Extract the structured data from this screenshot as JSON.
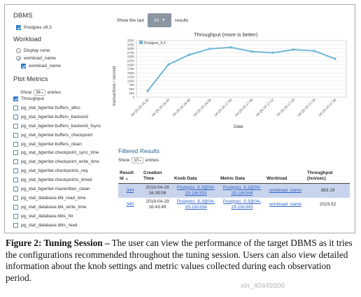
{
  "sidebar": {
    "dbms_heading": "DBMS",
    "dbms_option": "Postgres v9.3",
    "workload_heading": "Workload",
    "workload_options": [
      "Display none",
      "workload_name"
    ],
    "workload_sub": "workload_name",
    "plot_metrics_heading": "Plot Metrics",
    "show_label": "Show",
    "show_value": "36",
    "entries_label": "entries",
    "metrics": [
      {
        "label": "Throughput",
        "checked": true
      },
      {
        "label": "pg_stat_bgwriter.buffers_alloc",
        "checked": false
      },
      {
        "label": "pg_stat_bgwriter.buffers_backend",
        "checked": false
      },
      {
        "label": "pg_stat_bgwriter.buffers_backend_fsync",
        "checked": false
      },
      {
        "label": "pg_stat_bgwriter.buffers_checkpoint",
        "checked": false
      },
      {
        "label": "pg_stat_bgwriter.buffers_clean",
        "checked": false
      },
      {
        "label": "pg_stat_bgwriter.checkpoint_sync_time",
        "checked": false
      },
      {
        "label": "pg_stat_bgwriter.checkpoint_write_time",
        "checked": false
      },
      {
        "label": "pg_stat_bgwriter.checkpoints_req",
        "checked": false
      },
      {
        "label": "pg_stat_bgwriter.checkpoints_timed",
        "checked": false
      },
      {
        "label": "pg_stat_bgwriter.maxwritten_clean",
        "checked": false
      },
      {
        "label": "pg_stat_database.blk_read_time",
        "checked": false
      },
      {
        "label": "pg_stat_database.blk_write_time",
        "checked": false
      },
      {
        "label": "pg_stat_database.blks_hit",
        "checked": false
      },
      {
        "label": "pg_stat_database.blks_read",
        "checked": false
      }
    ]
  },
  "topbar": {
    "show_last_label": "Show the last",
    "show_last_value": "10",
    "results_label": "results"
  },
  "chart_data": {
    "type": "line",
    "title": "Throughput (more is better)",
    "xlabel": "Date",
    "ylabel": "transactions / second",
    "x": [
      "04-29-18 16:39",
      "04-29-18 16:43",
      "04-29-18 16:49",
      "04-29-18 16:55",
      "04-29-18 17:00",
      "04-29-18 17:06",
      "04-29-18 17:12",
      "04-29-18 17:18",
      "04-29-18 17:24",
      "04-29-18 17:30"
    ],
    "series": [
      {
        "name": "Postgres_9.3",
        "values": [
          383,
          2019,
          2620,
          2990,
          3080,
          2820,
          2740,
          2940,
          2860,
          2370
        ],
        "color": "#6fb7d9"
      }
    ],
    "yticks": [
      "0",
      "250",
      "500",
      "750",
      "1000",
      "1250",
      "1500",
      "1750",
      "2000",
      "2250",
      "2500",
      "2750",
      "3000",
      "3250",
      "3500"
    ],
    "ylim": [
      0,
      3500
    ],
    "grid": true,
    "legend_position": "top-left"
  },
  "filtered": {
    "title": "Filtered Results",
    "show_label": "Show",
    "show_value": "10",
    "entries_label": "entries",
    "headers": {
      "result_id": "Result Id",
      "creation_time": "Creation Time",
      "knob_data": "Knob Data",
      "metric_data": "Metric Data",
      "workload": "Workload",
      "throughput": "Throughput (txn/sec)"
    },
    "rows": [
      {
        "result_id": "344",
        "creation_time": "2018-04-29 16:39:06",
        "knob_data": "Postgres_9.3@04-29-18#333",
        "metric_data": "Postgres_9.3@04-29-18#344",
        "workload": "workload_name",
        "throughput": "383.16"
      },
      {
        "result_id": "345",
        "creation_time": "2018-04-29 16:43:49",
        "knob_data": "Postgres_9.3@04-29-18#334",
        "metric_data": "Postgres_9.3@04-29-18#345",
        "workload": "workload_name",
        "throughput": "2019.52"
      }
    ]
  },
  "caption": {
    "label": "Figure 2: Tuning Session –",
    "text": " The user can view the performance of the target DBMS as it tries the configurations recommended throughout the tuning session. Users can also view detailed information about the knob settings and metric values collected during each observation period."
  },
  "watermark": "xin_40449300",
  "colors": {
    "accent": "#2f7ec8",
    "line": "#6fb7d9",
    "row_highlight": "#c8d4ec",
    "link": "#2d64c8"
  }
}
